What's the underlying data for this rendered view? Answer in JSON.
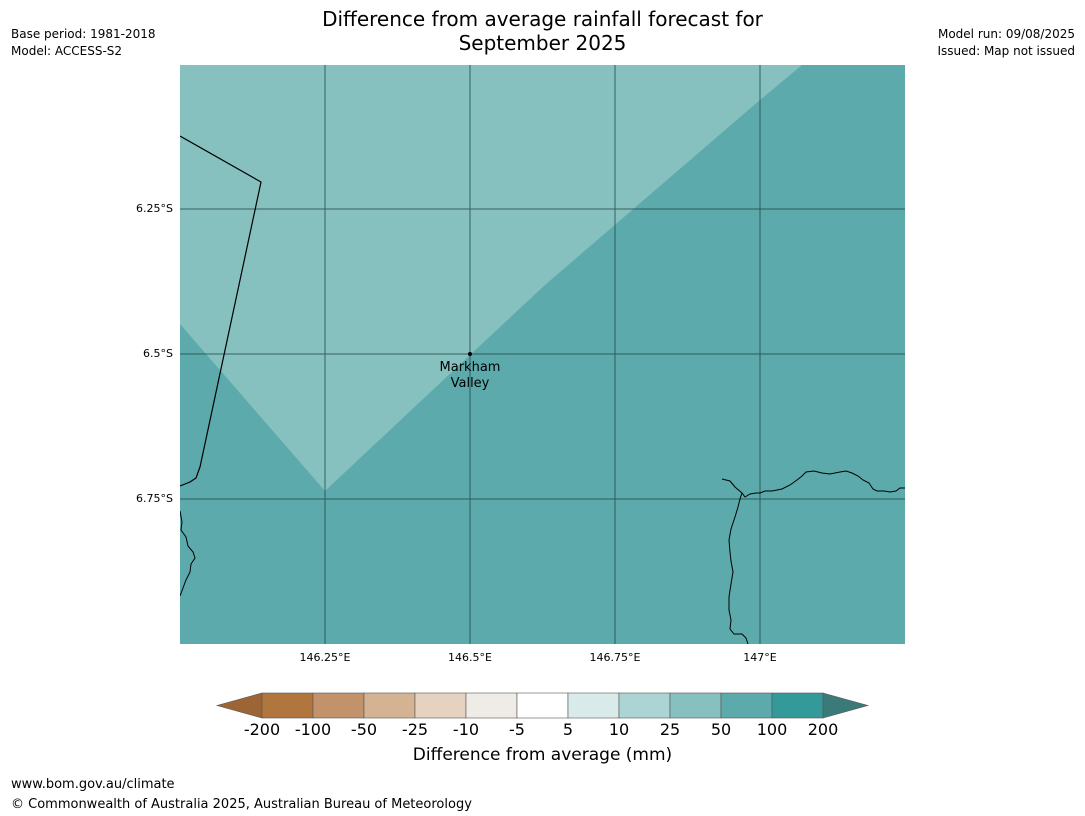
{
  "header": {
    "title_line1": "Difference from average rainfall forecast for",
    "title_line2": "September 2025",
    "base_period": "Base period: 1981-2018",
    "model": "Model: ACCESS-S2",
    "model_run": "Model run: 09/08/2025",
    "issued": "Issued: Map not issued"
  },
  "map": {
    "lat_labels": [
      "6.25°S",
      "6.5°S",
      "6.75°S"
    ],
    "lon_labels": [
      "146.25°E",
      "146.5°E",
      "146.75°E",
      "147°E"
    ],
    "place_name_line1": "Markham",
    "place_name_line2": "Valley",
    "colors": {
      "light_band": "#86c1c0",
      "main_band": "#5caaab",
      "gridline": "#1f3f3f"
    }
  },
  "colorbar": {
    "title": "Difference from average (mm)",
    "tick_labels": [
      "-200",
      "-100",
      "-50",
      "-25",
      "-10",
      "-5",
      "5",
      "10",
      "25",
      "50",
      "100",
      "200"
    ],
    "colors": [
      "#9d6535",
      "#b0763e",
      "#c2926a",
      "#d4b393",
      "#e6d2c1",
      "#efebe7",
      "#ffffff",
      "#d8eaea",
      "#acd4d4",
      "#86c1c0",
      "#5caaab",
      "#339999",
      "#3a7b7a"
    ]
  },
  "footer": {
    "website": "www.bom.gov.au/climate",
    "copyright": "© Commonwealth of Australia 2025, Australian Bureau of Meteorology"
  }
}
